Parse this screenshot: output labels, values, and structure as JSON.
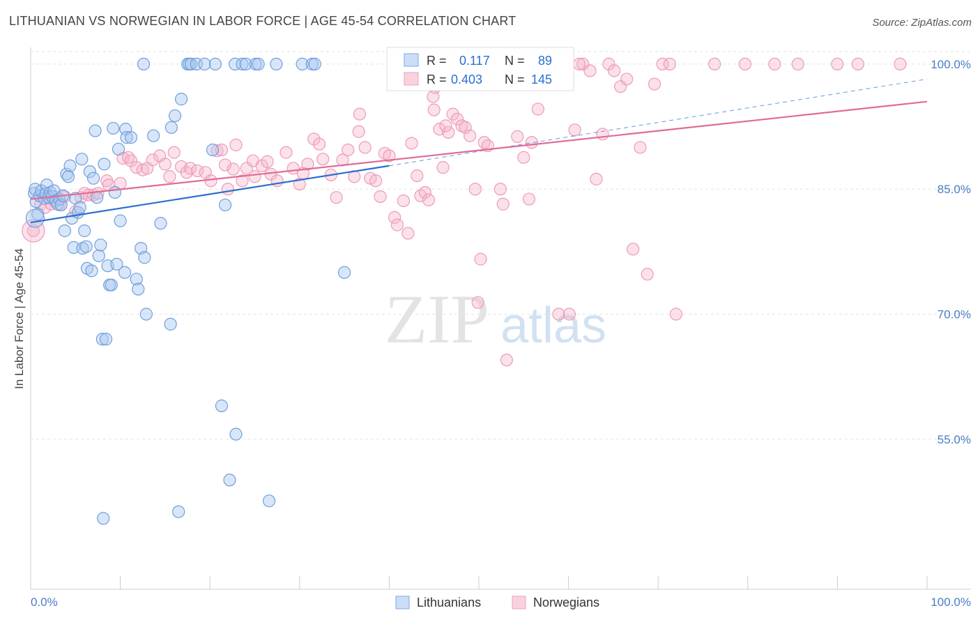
{
  "header": {
    "title": "LITHUANIAN VS NORWEGIAN IN LABOR FORCE | AGE 45-54 CORRELATION CHART",
    "source": "Source: ZipAtlas.com"
  },
  "watermark": {
    "zip": "ZIP",
    "atlas": "atlas"
  },
  "stats_legend": [
    {
      "r_label": "R =",
      "r_value": "0.117",
      "n_label": "N =",
      "n_value": "89",
      "color": "#7aa8e8"
    },
    {
      "r_label": "R =",
      "r_value": "0.403",
      "n_label": "N =",
      "n_value": "145",
      "color": "#f0a0bc"
    }
  ],
  "colors": {
    "blue_fill": "rgba(170,200,240,0.45)",
    "blue_stroke": "#6f9fe0",
    "blue_line": "#2a6fd0",
    "pink_fill": "rgba(245,180,200,0.40)",
    "pink_stroke": "#ee9ab8",
    "pink_line": "#e06b97",
    "axis_text": "#4a7cc7"
  },
  "chart_data": {
    "type": "scatter",
    "title": "LITHUANIAN VS NORWEGIAN IN LABOR FORCE | AGE 45-54 CORRELATION CHART",
    "xlabel": "",
    "ylabel": "In Labor Force | Age 45-54",
    "xlim": [
      0,
      100
    ],
    "ylim": [
      37,
      102
    ],
    "x_tick_labels": [
      "0.0%",
      "100.0%"
    ],
    "y_ticks": [
      55,
      70,
      85,
      100
    ],
    "y_tick_labels": [
      "55.0%",
      "70.0%",
      "85.0%",
      "100.0%"
    ],
    "grid": true,
    "legend_position": "bottom-center",
    "series": [
      {
        "name": "Lithuanians",
        "trend": {
          "x": [
            0,
            40
          ],
          "y": [
            81.0,
            87.8
          ],
          "dashed_to": [
            100,
            98.2
          ]
        },
        "points": [
          [
            0.4,
            84.5
          ],
          [
            0.5,
            85.0
          ],
          [
            0.6,
            83.5
          ],
          [
            0.8,
            82.0
          ],
          [
            1.0,
            84.2
          ],
          [
            1.2,
            84.8
          ],
          [
            1.5,
            83.9
          ],
          [
            1.7,
            84.5
          ],
          [
            1.8,
            85.5
          ],
          [
            2.0,
            84.0
          ],
          [
            2.2,
            84.6
          ],
          [
            2.4,
            84.1
          ],
          [
            2.6,
            84.8
          ],
          [
            2.8,
            83.6
          ],
          [
            3.0,
            83.2
          ],
          [
            3.2,
            83.8
          ],
          [
            3.4,
            83.1
          ],
          [
            3.6,
            84.2
          ],
          [
            3.8,
            80.0
          ],
          [
            4.0,
            86.8
          ],
          [
            4.2,
            86.5
          ],
          [
            4.4,
            87.8
          ],
          [
            4.6,
            81.5
          ],
          [
            4.8,
            78.0
          ],
          [
            5.0,
            83.9
          ],
          [
            5.3,
            82.2
          ],
          [
            5.5,
            82.8
          ],
          [
            5.7,
            88.6
          ],
          [
            5.8,
            77.9
          ],
          [
            6.0,
            80.0
          ],
          [
            6.2,
            78.1
          ],
          [
            6.3,
            75.5
          ],
          [
            6.6,
            87.1
          ],
          [
            6.8,
            75.2
          ],
          [
            7.0,
            86.3
          ],
          [
            7.2,
            92.0
          ],
          [
            7.4,
            84.0
          ],
          [
            7.6,
            77.0
          ],
          [
            7.8,
            78.3
          ],
          [
            8.0,
            67.0
          ],
          [
            8.1,
            45.5
          ],
          [
            8.2,
            88.0
          ],
          [
            8.4,
            67.0
          ],
          [
            8.6,
            75.8
          ],
          [
            8.8,
            73.5
          ],
          [
            9.0,
            73.5
          ],
          [
            9.2,
            92.3
          ],
          [
            9.4,
            84.6
          ],
          [
            9.6,
            76.0
          ],
          [
            9.8,
            89.8
          ],
          [
            10.0,
            81.2
          ],
          [
            10.5,
            75.0
          ],
          [
            10.6,
            92.2
          ],
          [
            10.7,
            91.2
          ],
          [
            11.2,
            91.2
          ],
          [
            11.8,
            74.2
          ],
          [
            12.0,
            73.0
          ],
          [
            12.3,
            77.9
          ],
          [
            12.6,
            100.0
          ],
          [
            12.7,
            76.8
          ],
          [
            12.9,
            70.0
          ],
          [
            13.7,
            91.4
          ],
          [
            14.5,
            80.9
          ],
          [
            15.6,
            68.8
          ],
          [
            15.7,
            92.4
          ],
          [
            16.1,
            93.8
          ],
          [
            16.5,
            46.3
          ],
          [
            16.8,
            95.8
          ],
          [
            17.5,
            100.0
          ],
          [
            17.7,
            100.0
          ],
          [
            17.9,
            100.0
          ],
          [
            18.5,
            100.0
          ],
          [
            19.4,
            100.0
          ],
          [
            20.3,
            89.7
          ],
          [
            20.6,
            100.0
          ],
          [
            21.3,
            59.0
          ],
          [
            21.7,
            83.1
          ],
          [
            22.2,
            50.1
          ],
          [
            22.8,
            100.0
          ],
          [
            22.9,
            55.6
          ],
          [
            23.6,
            100.0
          ],
          [
            24.0,
            100.0
          ],
          [
            25.1,
            100.0
          ],
          [
            25.4,
            100.0
          ],
          [
            26.6,
            47.6
          ],
          [
            27.4,
            100.0
          ],
          [
            30.3,
            100.0
          ],
          [
            31.4,
            100.0
          ],
          [
            31.7,
            100.0
          ],
          [
            35.0,
            75.0
          ]
        ]
      },
      {
        "name": "Norwegians",
        "trend": {
          "x": [
            0,
            100
          ],
          "y": [
            83.8,
            95.5
          ]
        },
        "points": [
          [
            0.3,
            80.0
          ],
          [
            1.1,
            83.2
          ],
          [
            1.6,
            82.8
          ],
          [
            2.1,
            83.9
          ],
          [
            2.3,
            83.2
          ],
          [
            2.9,
            84.0
          ],
          [
            3.2,
            83.1
          ],
          [
            3.8,
            84.1
          ],
          [
            5.0,
            82.3
          ],
          [
            5.6,
            84.0
          ],
          [
            6.0,
            84.5
          ],
          [
            6.5,
            84.3
          ],
          [
            7.0,
            84.3
          ],
          [
            7.5,
            84.5
          ],
          [
            8.5,
            86.0
          ],
          [
            8.7,
            85.5
          ],
          [
            10.0,
            85.7
          ],
          [
            10.3,
            88.7
          ],
          [
            10.9,
            88.8
          ],
          [
            11.2,
            88.4
          ],
          [
            11.8,
            87.6
          ],
          [
            12.5,
            87.3
          ],
          [
            13.0,
            87.5
          ],
          [
            13.6,
            88.5
          ],
          [
            14.4,
            89.0
          ],
          [
            15.0,
            88.0
          ],
          [
            15.5,
            86.5
          ],
          [
            16.0,
            89.4
          ],
          [
            16.8,
            87.7
          ],
          [
            17.4,
            87.0
          ],
          [
            17.8,
            87.5
          ],
          [
            18.6,
            87.2
          ],
          [
            19.5,
            87.0
          ],
          [
            20.1,
            86.0
          ],
          [
            20.8,
            89.6
          ],
          [
            21.3,
            89.7
          ],
          [
            21.7,
            87.9
          ],
          [
            22.0,
            85.0
          ],
          [
            22.6,
            87.4
          ],
          [
            22.9,
            90.3
          ],
          [
            23.6,
            86.0
          ],
          [
            24.1,
            87.5
          ],
          [
            24.8,
            88.4
          ],
          [
            25.0,
            86.5
          ],
          [
            25.8,
            87.8
          ],
          [
            26.4,
            88.3
          ],
          [
            26.8,
            86.8
          ],
          [
            27.5,
            86.0
          ],
          [
            28.5,
            89.4
          ],
          [
            29.3,
            87.5
          ],
          [
            30.0,
            85.6
          ],
          [
            30.4,
            86.9
          ],
          [
            30.9,
            88.0
          ],
          [
            31.6,
            91.0
          ],
          [
            32.2,
            90.4
          ],
          [
            32.6,
            88.6
          ],
          [
            33.5,
            86.7
          ],
          [
            34.1,
            84.0
          ],
          [
            34.8,
            88.5
          ],
          [
            35.4,
            89.7
          ],
          [
            36.1,
            86.5
          ],
          [
            36.6,
            91.9
          ],
          [
            36.7,
            94.0
          ],
          [
            37.3,
            90.0
          ],
          [
            37.9,
            86.3
          ],
          [
            38.5,
            86.0
          ],
          [
            39.0,
            84.1
          ],
          [
            39.5,
            89.3
          ],
          [
            40.0,
            89.0
          ],
          [
            40.6,
            81.6
          ],
          [
            40.9,
            80.7
          ],
          [
            41.6,
            83.6
          ],
          [
            42.1,
            79.7
          ],
          [
            42.5,
            90.5
          ],
          [
            43.1,
            86.6
          ],
          [
            43.5,
            84.2
          ],
          [
            44.0,
            84.6
          ],
          [
            44.4,
            83.7
          ],
          [
            45.0,
            94.5
          ],
          [
            45.6,
            92.2
          ],
          [
            46.0,
            87.6
          ],
          [
            46.6,
            91.8
          ],
          [
            47.1,
            94.0
          ],
          [
            47.6,
            93.4
          ],
          [
            48.1,
            92.6
          ],
          [
            48.5,
            92.4
          ],
          [
            49.0,
            91.4
          ],
          [
            49.6,
            85.0
          ],
          [
            50.2,
            76.6
          ],
          [
            50.6,
            90.6
          ],
          [
            51.0,
            90.2
          ],
          [
            51.4,
            97.8
          ],
          [
            52.4,
            85.0
          ],
          [
            52.7,
            83.2
          ],
          [
            53.1,
            64.5
          ],
          [
            53.6,
            100.0
          ],
          [
            54.3,
            91.3
          ],
          [
            55.0,
            88.8
          ],
          [
            55.6,
            83.8
          ],
          [
            55.9,
            90.6
          ],
          [
            56.6,
            94.6
          ],
          [
            57.7,
            100.0
          ],
          [
            58.2,
            100.0
          ],
          [
            58.9,
            70.0
          ],
          [
            59.5,
            100.0
          ],
          [
            60.1,
            70.0
          ],
          [
            60.7,
            92.1
          ],
          [
            61.6,
            100.0
          ],
          [
            62.4,
            99.2
          ],
          [
            63.1,
            86.2
          ],
          [
            63.8,
            91.6
          ],
          [
            64.5,
            100.0
          ],
          [
            65.1,
            99.2
          ],
          [
            65.8,
            97.3
          ],
          [
            66.5,
            98.2
          ],
          [
            67.2,
            77.8
          ],
          [
            68.0,
            90.0
          ],
          [
            68.8,
            74.8
          ],
          [
            69.6,
            97.6
          ],
          [
            70.5,
            100.0
          ],
          [
            71.3,
            100.0
          ],
          [
            72.0,
            70.0
          ],
          [
            76.3,
            100.0
          ],
          [
            79.7,
            100.0
          ],
          [
            83.0,
            100.0
          ],
          [
            85.6,
            100.0
          ],
          [
            90.0,
            100.0
          ],
          [
            92.3,
            100.0
          ],
          [
            97.0,
            100.0
          ],
          [
            45.1,
            97.2
          ],
          [
            49.9,
            71.4
          ],
          [
            53.4,
            99.3
          ],
          [
            61.2,
            100.0
          ],
          [
            44.9,
            96.1
          ],
          [
            46.3,
            92.6
          ]
        ]
      }
    ]
  }
}
